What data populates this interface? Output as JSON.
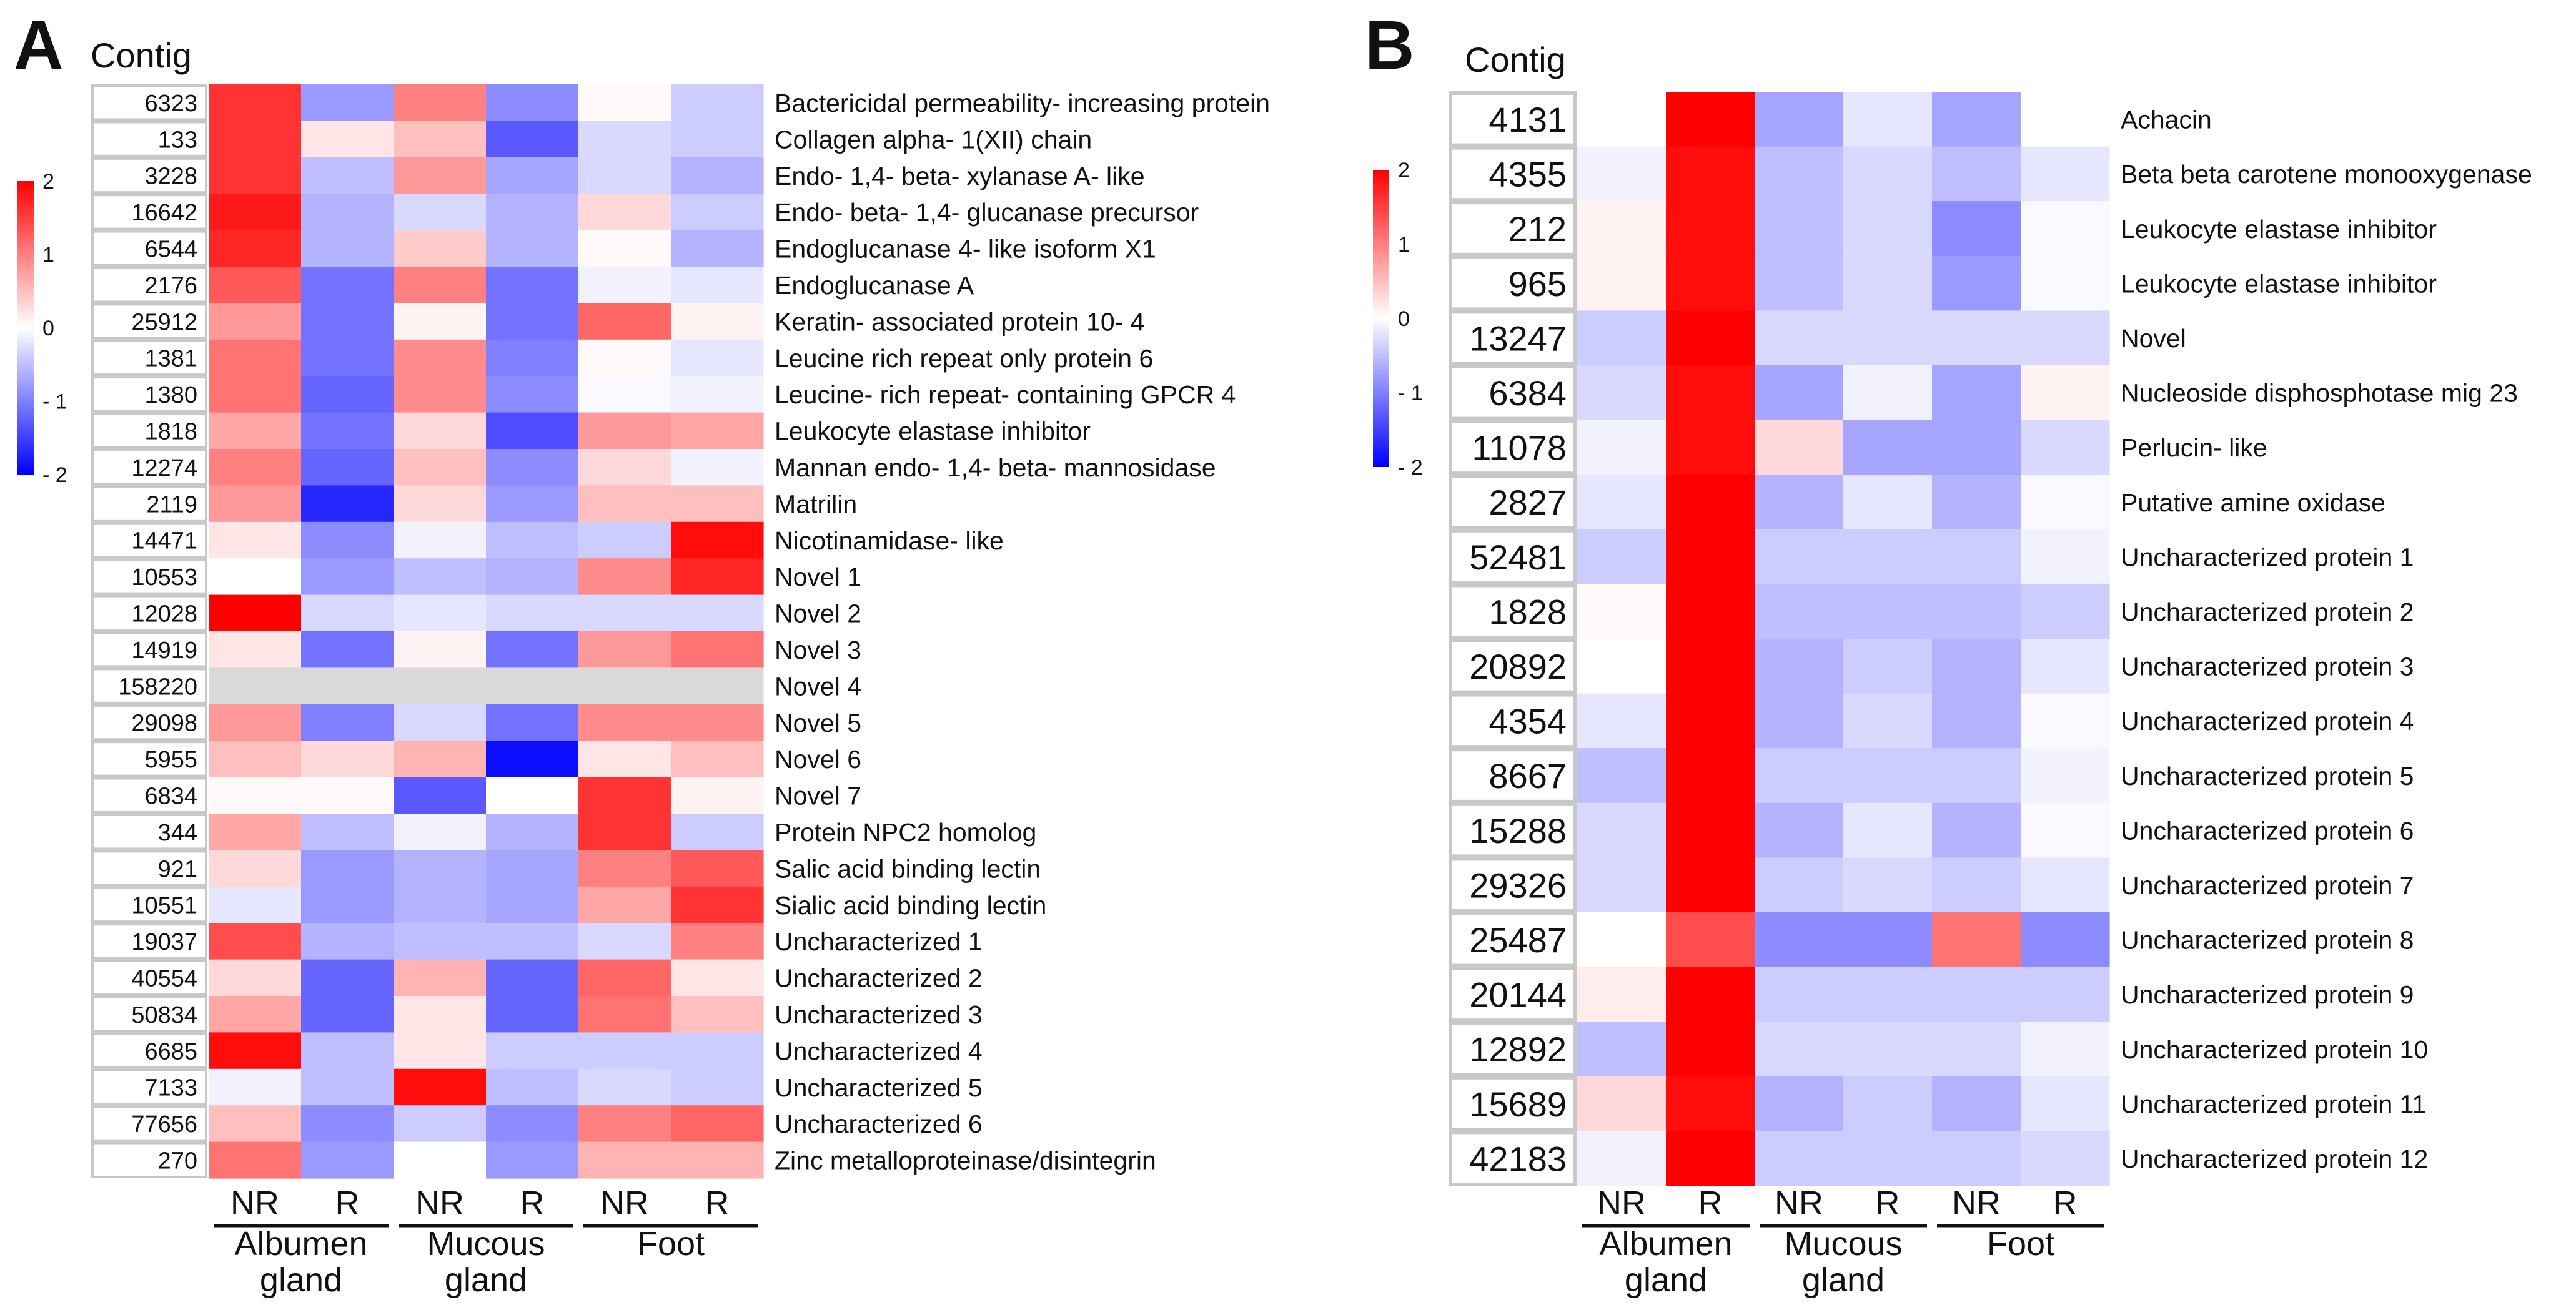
{
  "figure": {
    "panels": [
      {
        "id": "A",
        "letter": "A",
        "column_title": "Contig"
      },
      {
        "id": "B",
        "letter": "B",
        "column_title": "Contig"
      }
    ]
  },
  "colors": {
    "high": "#ff0000",
    "mid": "#ffffff",
    "low": "#0000ff",
    "missing": "#d9d9d9",
    "cell_border": "#c8c8c8",
    "text": "#111111"
  },
  "legends": [
    {
      "panel": "A",
      "range": [
        -2,
        2
      ],
      "ticks": [
        "2",
        "1",
        "0",
        "- 1",
        "- 2"
      ],
      "tick_values": [
        2,
        1,
        0,
        -1,
        -2
      ]
    },
    {
      "panel": "B",
      "range": [
        -2,
        2
      ],
      "ticks": [
        "2",
        "1",
        "0",
        "- 1",
        "- 2"
      ],
      "tick_values": [
        2,
        1,
        0,
        -1,
        -2
      ]
    }
  ],
  "chart_data": [
    {
      "panel": "A",
      "type": "heatmap",
      "title": "",
      "value_range": [
        -2,
        2
      ],
      "row_header": "Contig",
      "columns": [
        "NR",
        "R",
        "NR",
        "R",
        "NR",
        "R"
      ],
      "column_groups": [
        {
          "label_line1": "Albumen",
          "label_line2": "gland",
          "span": [
            0,
            1
          ]
        },
        {
          "label_line1": "Mucous",
          "label_line2": "gland",
          "span": [
            2,
            3
          ]
        },
        {
          "label_line1": "Foot",
          "label_line2": "",
          "span": [
            4,
            5
          ]
        }
      ],
      "rows": [
        {
          "contig": "6323",
          "label": "Bactericidal permeability- increasing protein",
          "values": [
            1.6,
            -0.8,
            1.0,
            -0.9,
            0.05,
            -0.4
          ]
        },
        {
          "contig": "133",
          "label": "Collagen alpha- 1(XII) chain",
          "values": [
            1.6,
            0.2,
            0.5,
            -1.3,
            -0.3,
            -0.4
          ]
        },
        {
          "contig": "3228",
          "label": "Endo- 1,4- beta- xylanase A- like",
          "values": [
            1.6,
            -0.5,
            0.8,
            -0.7,
            -0.3,
            -0.6
          ]
        },
        {
          "contig": "16642",
          "label": "Endo- beta- 1,4- glucanase precursor",
          "values": [
            1.8,
            -0.6,
            -0.3,
            -0.6,
            0.3,
            -0.4
          ]
        },
        {
          "contig": "6544",
          "label": "Endoglucanase 4- like isoform X1",
          "values": [
            1.7,
            -0.6,
            0.4,
            -0.6,
            0.05,
            -0.6
          ]
        },
        {
          "contig": "2176",
          "label": "Endoglucanase A",
          "values": [
            1.3,
            -1.1,
            1.0,
            -1.1,
            -0.1,
            -0.2
          ]
        },
        {
          "contig": "25912",
          "label": "Keratin- associated protein 10- 4",
          "values": [
            0.8,
            -1.1,
            0.1,
            -1.1,
            1.2,
            0.1
          ]
        },
        {
          "contig": "1381",
          "label": "Leucine rich repeat only protein 6",
          "values": [
            1.1,
            -1.1,
            0.9,
            -1.0,
            0.05,
            -0.2
          ]
        },
        {
          "contig": "1380",
          "label": "Leucine- rich repeat- containing GPCR 4",
          "values": [
            1.1,
            -1.2,
            0.9,
            -0.9,
            -0.05,
            -0.1
          ]
        },
        {
          "contig": "1818",
          "label": "Leukocyte elastase inhibitor",
          "values": [
            0.7,
            -1.1,
            0.3,
            -1.4,
            0.8,
            0.7
          ]
        },
        {
          "contig": "12274",
          "label": "Mannan endo- 1,4- beta- mannosidase",
          "values": [
            1.0,
            -1.2,
            0.5,
            -0.9,
            0.3,
            -0.1
          ]
        },
        {
          "contig": "2119",
          "label": "Matrilin",
          "values": [
            0.8,
            -1.7,
            0.3,
            -0.8,
            0.5,
            0.5
          ]
        },
        {
          "contig": "14471",
          "label": "Nicotinamidase- like",
          "values": [
            0.2,
            -0.9,
            -0.1,
            -0.5,
            -0.4,
            1.9
          ]
        },
        {
          "contig": "10553",
          "label": "Novel 1",
          "values": [
            0.0,
            -0.8,
            -0.5,
            -0.6,
            0.9,
            1.7
          ]
        },
        {
          "contig": "12028",
          "label": "Novel 2",
          "values": [
            2.0,
            -0.3,
            -0.2,
            -0.3,
            -0.3,
            -0.3
          ]
        },
        {
          "contig": "14919",
          "label": "Novel 3",
          "values": [
            0.2,
            -1.1,
            0.1,
            -1.1,
            0.8,
            1.1
          ]
        },
        {
          "contig": "158220",
          "label": "Novel 4",
          "values": [
            null,
            null,
            null,
            null,
            null,
            null
          ]
        },
        {
          "contig": "29098",
          "label": "Novel 5",
          "values": [
            0.8,
            -1.0,
            -0.3,
            -1.1,
            0.9,
            0.9
          ]
        },
        {
          "contig": "5955",
          "label": "Novel 6",
          "values": [
            0.5,
            0.3,
            0.6,
            -1.9,
            0.2,
            0.5
          ]
        },
        {
          "contig": "6834",
          "label": "Novel 7",
          "values": [
            0.05,
            0.05,
            -1.3,
            0.0,
            1.6,
            0.1
          ]
        },
        {
          "contig": "344",
          "label": "Protein NPC2 homolog",
          "values": [
            0.7,
            -0.5,
            -0.1,
            -0.6,
            1.6,
            -0.4
          ]
        },
        {
          "contig": "921",
          "label": "Salic acid binding lectin",
          "values": [
            0.3,
            -0.8,
            -0.6,
            -0.7,
            1.0,
            1.3
          ]
        },
        {
          "contig": "10551",
          "label": "Sialic acid binding lectin",
          "values": [
            -0.2,
            -0.8,
            -0.6,
            -0.7,
            0.7,
            1.6
          ]
        },
        {
          "contig": "19037",
          "label": "Uncharacterized 1",
          "values": [
            1.4,
            -0.6,
            -0.5,
            -0.5,
            -0.3,
            1.0
          ]
        },
        {
          "contig": "40554",
          "label": "Uncharacterized 2",
          "values": [
            0.3,
            -1.2,
            0.6,
            -1.2,
            1.2,
            0.2
          ]
        },
        {
          "contig": "50834",
          "label": "Uncharacterized 3",
          "values": [
            0.7,
            -1.2,
            0.2,
            -1.2,
            1.1,
            0.5
          ]
        },
        {
          "contig": "6685",
          "label": "Uncharacterized 4",
          "values": [
            1.9,
            -0.5,
            0.2,
            -0.4,
            -0.4,
            -0.4
          ]
        },
        {
          "contig": "7133",
          "label": "Uncharacterized 5",
          "values": [
            -0.1,
            -0.5,
            1.9,
            -0.5,
            -0.3,
            -0.4
          ]
        },
        {
          "contig": "77656",
          "label": "Uncharacterized 6",
          "values": [
            0.5,
            -0.9,
            -0.4,
            -0.9,
            1.0,
            1.2
          ]
        },
        {
          "contig": "270",
          "label": "Zinc metalloproteinase/disintegrin",
          "values": [
            1.1,
            -0.8,
            0.0,
            -0.8,
            0.6,
            0.6
          ]
        }
      ]
    },
    {
      "panel": "B",
      "type": "heatmap",
      "title": "",
      "value_range": [
        -2,
        2
      ],
      "row_header": "Contig",
      "columns": [
        "NR",
        "R",
        "NR",
        "R",
        "NR",
        "R"
      ],
      "column_groups": [
        {
          "label_line1": "Albumen",
          "label_line2": "gland",
          "span": [
            0,
            1
          ]
        },
        {
          "label_line1": "Mucous",
          "label_line2": "gland",
          "span": [
            2,
            3
          ]
        },
        {
          "label_line1": "Foot",
          "label_line2": "",
          "span": [
            4,
            5
          ]
        }
      ],
      "rows": [
        {
          "contig": "4131",
          "label": "Achacin",
          "values": [
            0.0,
            2.0,
            -0.7,
            -0.2,
            -0.7,
            0.0
          ]
        },
        {
          "contig": "4355",
          "label": "Beta beta carotene monooxygenase",
          "values": [
            -0.1,
            1.9,
            -0.5,
            -0.3,
            -0.5,
            -0.2
          ]
        },
        {
          "contig": "212",
          "label": "Leukocyte elastase inhibitor",
          "values": [
            0.1,
            1.9,
            -0.5,
            -0.3,
            -0.9,
            -0.05
          ]
        },
        {
          "contig": "965",
          "label": "Leukocyte elastase inhibitor",
          "values": [
            0.1,
            1.9,
            -0.5,
            -0.3,
            -0.8,
            -0.05
          ]
        },
        {
          "contig": "13247",
          "label": "Novel",
          "values": [
            -0.4,
            2.0,
            -0.3,
            -0.3,
            -0.3,
            -0.3
          ]
        },
        {
          "contig": "6384",
          "label": "Nucleoside disphosphotase mig 23",
          "values": [
            -0.3,
            1.9,
            -0.7,
            -0.1,
            -0.7,
            0.1
          ]
        },
        {
          "contig": "11078",
          "label": "Perlucin- like",
          "values": [
            -0.1,
            1.9,
            0.3,
            -0.7,
            -0.7,
            -0.3
          ]
        },
        {
          "contig": "2827",
          "label": "Putative amine oxidase",
          "values": [
            -0.2,
            2.0,
            -0.6,
            -0.2,
            -0.6,
            -0.05
          ]
        },
        {
          "contig": "52481",
          "label": "Uncharacterized protein 1",
          "values": [
            -0.4,
            2.0,
            -0.4,
            -0.4,
            -0.4,
            -0.1
          ]
        },
        {
          "contig": "1828",
          "label": "Uncharacterized protein 2",
          "values": [
            0.05,
            2.0,
            -0.5,
            -0.5,
            -0.5,
            -0.4
          ]
        },
        {
          "contig": "20892",
          "label": "Uncharacterized protein 3",
          "values": [
            0.0,
            2.0,
            -0.6,
            -0.4,
            -0.6,
            -0.2
          ]
        },
        {
          "contig": "4354",
          "label": "Uncharacterized protein 4",
          "values": [
            -0.2,
            2.0,
            -0.6,
            -0.3,
            -0.6,
            -0.05
          ]
        },
        {
          "contig": "8667",
          "label": "Uncharacterized protein 5",
          "values": [
            -0.5,
            2.0,
            -0.4,
            -0.4,
            -0.4,
            -0.1
          ]
        },
        {
          "contig": "15288",
          "label": "Uncharacterized protein 6",
          "values": [
            -0.3,
            2.0,
            -0.6,
            -0.2,
            -0.6,
            -0.05
          ]
        },
        {
          "contig": "29326",
          "label": "Uncharacterized protein 7",
          "values": [
            -0.3,
            2.0,
            -0.4,
            -0.3,
            -0.4,
            -0.2
          ]
        },
        {
          "contig": "25487",
          "label": "Uncharacterized protein 8",
          "values": [
            0.0,
            1.4,
            -0.9,
            -0.9,
            1.1,
            -0.9
          ]
        },
        {
          "contig": "20144",
          "label": "Uncharacterized protein 9",
          "values": [
            0.15,
            2.0,
            -0.4,
            -0.4,
            -0.4,
            -0.4
          ]
        },
        {
          "contig": "12892",
          "label": "Uncharacterized protein 10",
          "values": [
            -0.5,
            2.0,
            -0.3,
            -0.3,
            -0.3,
            -0.1
          ]
        },
        {
          "contig": "15689",
          "label": "Uncharacterized protein 11",
          "values": [
            0.3,
            1.9,
            -0.6,
            -0.4,
            -0.6,
            -0.2
          ]
        },
        {
          "contig": "42183",
          "label": "Uncharacterized protein 12",
          "values": [
            -0.1,
            2.0,
            -0.4,
            -0.4,
            -0.4,
            -0.3
          ]
        }
      ]
    }
  ]
}
